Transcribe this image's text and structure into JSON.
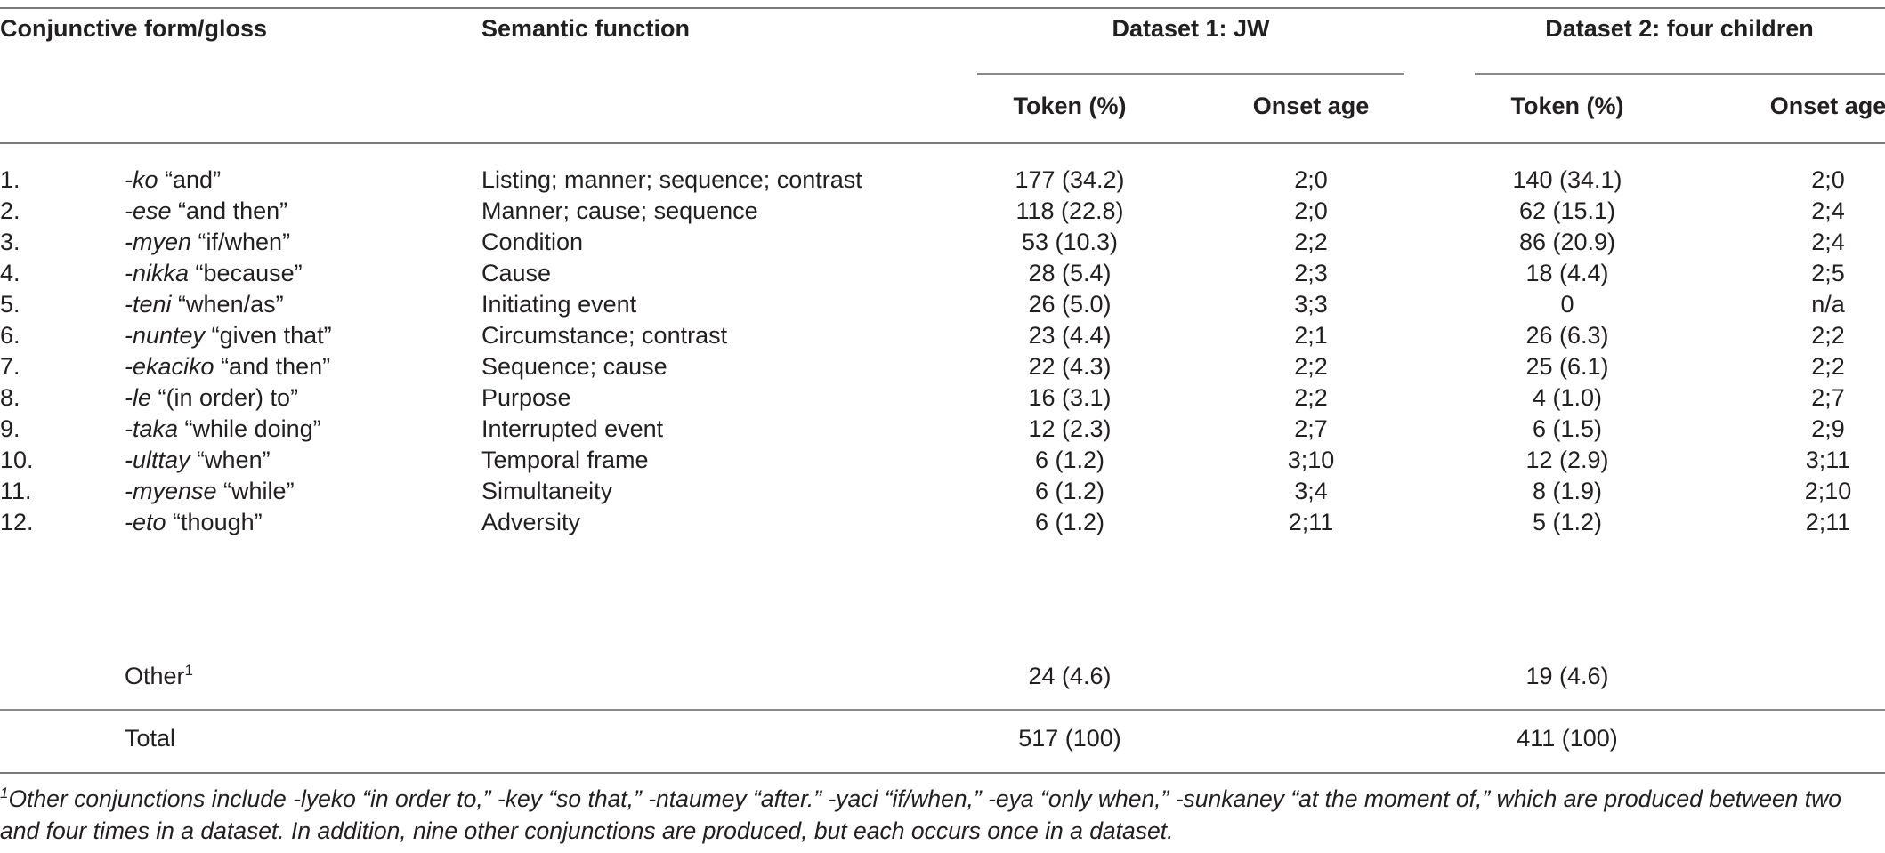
{
  "headers": {
    "col_form": "Conjunctive form/gloss",
    "col_semantic": "Semantic function",
    "dataset1": "Dataset 1: JW",
    "dataset2": "Dataset 2: four children",
    "token": "Token (%)",
    "onset": "Onset age"
  },
  "rows": [
    {
      "num": "1.",
      "form": "-ko",
      "gloss": "“and”",
      "semantic": "Listing; manner; sequence; contrast",
      "t1": "177 (34.2)",
      "a1": "2;0",
      "t2": "140 (34.1)",
      "a2": "2;0"
    },
    {
      "num": "2.",
      "form": "-ese",
      "gloss": "“and then”",
      "semantic": "Manner; cause; sequence",
      "t1": "118 (22.8)",
      "a1": "2;0",
      "t2": "62 (15.1)",
      "a2": "2;4"
    },
    {
      "num": "3.",
      "form": "-myen",
      "gloss": "“if/when”",
      "semantic": "Condition",
      "t1": "53 (10.3)",
      "a1": "2;2",
      "t2": "86 (20.9)",
      "a2": "2;4"
    },
    {
      "num": "4.",
      "form": "-nikka",
      "gloss": "“because”",
      "semantic": "Cause",
      "t1": "28 (5.4)",
      "a1": "2;3",
      "t2": "18 (4.4)",
      "a2": "2;5"
    },
    {
      "num": "5.",
      "form": "-teni",
      "gloss": "“when/as”",
      "semantic": "Initiating event",
      "t1": "26 (5.0)",
      "a1": "3;3",
      "t2": "0",
      "a2": "n/a"
    },
    {
      "num": "6.",
      "form": "-nuntey",
      "gloss": "“given that”",
      "semantic": "Circumstance; contrast",
      "t1": "23 (4.4)",
      "a1": "2;1",
      "t2": "26 (6.3)",
      "a2": "2;2"
    },
    {
      "num": "7.",
      "form": "-ekaciko",
      "gloss": "“and then”",
      "semantic": "Sequence; cause",
      "t1": "22 (4.3)",
      "a1": "2;2",
      "t2": "25 (6.1)",
      "a2": "2;2"
    },
    {
      "num": "8.",
      "form": "-le",
      "gloss": "“(in order) to”",
      "semantic": "Purpose",
      "t1": "16 (3.1)",
      "a1": "2;2",
      "t2": "4 (1.0)",
      "a2": "2;7"
    },
    {
      "num": "9.",
      "form": "-taka",
      "gloss": "“while doing”",
      "semantic": "Interrupted event",
      "t1": "12 (2.3)",
      "a1": "2;7",
      "t2": "6 (1.5)",
      "a2": "2;9"
    },
    {
      "num": "10.",
      "form": "-ulttay",
      "gloss": "“when”",
      "semantic": "Temporal frame",
      "t1": "6 (1.2)",
      "a1": "3;10",
      "t2": "12 (2.9)",
      "a2": "3;11"
    },
    {
      "num": "11.",
      "form": "-myense",
      "gloss": "“while”",
      "semantic": "Simultaneity",
      "t1": "6 (1.2)",
      "a1": "3;4",
      "t2": "8 (1.9)",
      "a2": "2;10"
    },
    {
      "num": "12.",
      "form": "-eto",
      "gloss": "“though”",
      "semantic": "Adversity",
      "t1": "6 (1.2)",
      "a1": "2;11",
      "t2": "5 (1.2)",
      "a2": "2;11"
    }
  ],
  "other": {
    "label": "Other",
    "sup": "1",
    "t1": "24 (4.6)",
    "t2": "19 (4.6)"
  },
  "total": {
    "label": "Total",
    "t1": "517 (100)",
    "t2": "411 (100)"
  },
  "footnote": {
    "sup": "1",
    "text": "Other conjunctions include -lyeko “in order to,” -key “so that,” -ntaumey “after.” -yaci “if/when,” -eya “only when,” -sunkaney “at the moment of,” which are produced between two and four times in a dataset. In addition, nine other conjunctions are produced, but each occurs once in a dataset."
  }
}
